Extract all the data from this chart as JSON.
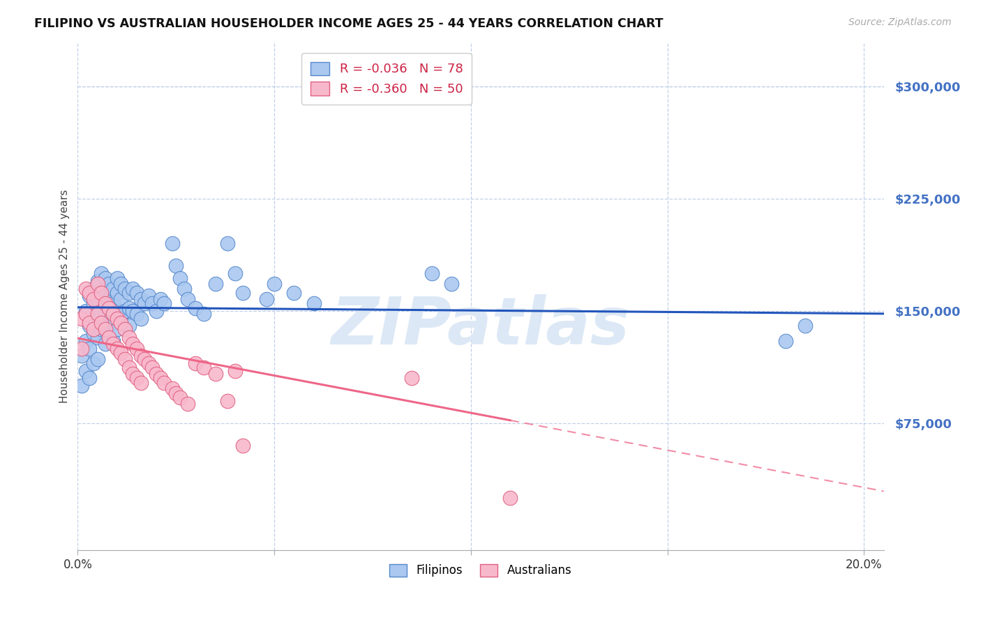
{
  "title": "FILIPINO VS AUSTRALIAN HOUSEHOLDER INCOME AGES 25 - 44 YEARS CORRELATION CHART",
  "source": "Source: ZipAtlas.com",
  "ylabel": "Householder Income Ages 25 - 44 years",
  "xlim": [
    0.0,
    0.205
  ],
  "ylim": [
    -10000,
    330000
  ],
  "background_color": "#ffffff",
  "grid_color": "#c0d0e8",
  "title_color": "#111111",
  "ytick_color": "#4472c4",
  "source_color": "#aaaaaa",
  "watermark_text": "ZIPatlas",
  "watermark_color": "#dce8f5",
  "legend_R1": "R = -0.036",
  "legend_N1": "N = 78",
  "legend_R2": "R = -0.360",
  "legend_N2": "N = 50",
  "filipino_color": "#aac8f0",
  "filipino_edge_color": "#5588cc",
  "australian_color": "#f8b8cc",
  "australian_edge_color": "#e06080",
  "trend_filipino_color": "#2255bb",
  "trend_australian_color": "#ee6688",
  "filipino_x": [
    0.001,
    0.001,
    0.002,
    0.002,
    0.002,
    0.003,
    0.003,
    0.003,
    0.003,
    0.004,
    0.004,
    0.004,
    0.004,
    0.005,
    0.005,
    0.005,
    0.005,
    0.005,
    0.006,
    0.006,
    0.006,
    0.006,
    0.007,
    0.007,
    0.007,
    0.007,
    0.007,
    0.008,
    0.008,
    0.008,
    0.008,
    0.009,
    0.009,
    0.009,
    0.009,
    0.01,
    0.01,
    0.01,
    0.01,
    0.011,
    0.011,
    0.011,
    0.012,
    0.012,
    0.013,
    0.013,
    0.013,
    0.014,
    0.014,
    0.015,
    0.015,
    0.016,
    0.016,
    0.017,
    0.018,
    0.019,
    0.02,
    0.021,
    0.022,
    0.024,
    0.025,
    0.026,
    0.027,
    0.028,
    0.03,
    0.032,
    0.035,
    0.038,
    0.04,
    0.042,
    0.048,
    0.05,
    0.055,
    0.06,
    0.09,
    0.095,
    0.18,
    0.185
  ],
  "filipino_y": [
    120000,
    100000,
    150000,
    130000,
    110000,
    160000,
    140000,
    125000,
    105000,
    165000,
    155000,
    135000,
    115000,
    170000,
    158000,
    148000,
    132000,
    118000,
    175000,
    162000,
    150000,
    138000,
    172000,
    160000,
    148000,
    138000,
    128000,
    168000,
    158000,
    148000,
    132000,
    165000,
    155000,
    142000,
    130000,
    172000,
    162000,
    150000,
    138000,
    168000,
    158000,
    145000,
    165000,
    150000,
    162000,
    152000,
    140000,
    165000,
    150000,
    162000,
    148000,
    158000,
    145000,
    155000,
    160000,
    155000,
    150000,
    158000,
    155000,
    195000,
    180000,
    172000,
    165000,
    158000,
    152000,
    148000,
    168000,
    195000,
    175000,
    162000,
    158000,
    168000,
    162000,
    155000,
    175000,
    168000,
    130000,
    140000
  ],
  "australian_x": [
    0.001,
    0.001,
    0.002,
    0.002,
    0.003,
    0.003,
    0.004,
    0.004,
    0.005,
    0.005,
    0.006,
    0.006,
    0.007,
    0.007,
    0.008,
    0.008,
    0.009,
    0.009,
    0.01,
    0.01,
    0.011,
    0.011,
    0.012,
    0.012,
    0.013,
    0.013,
    0.014,
    0.014,
    0.015,
    0.015,
    0.016,
    0.016,
    0.017,
    0.018,
    0.019,
    0.02,
    0.021,
    0.022,
    0.024,
    0.025,
    0.026,
    0.028,
    0.03,
    0.032,
    0.035,
    0.038,
    0.04,
    0.042,
    0.085,
    0.11
  ],
  "australian_y": [
    145000,
    125000,
    165000,
    148000,
    162000,
    142000,
    158000,
    138000,
    168000,
    148000,
    162000,
    142000,
    155000,
    138000,
    152000,
    132000,
    148000,
    128000,
    145000,
    125000,
    142000,
    122000,
    138000,
    118000,
    132000,
    112000,
    128000,
    108000,
    125000,
    105000,
    120000,
    102000,
    118000,
    115000,
    112000,
    108000,
    105000,
    102000,
    98000,
    95000,
    92000,
    88000,
    115000,
    112000,
    108000,
    90000,
    110000,
    60000,
    105000,
    25000
  ]
}
